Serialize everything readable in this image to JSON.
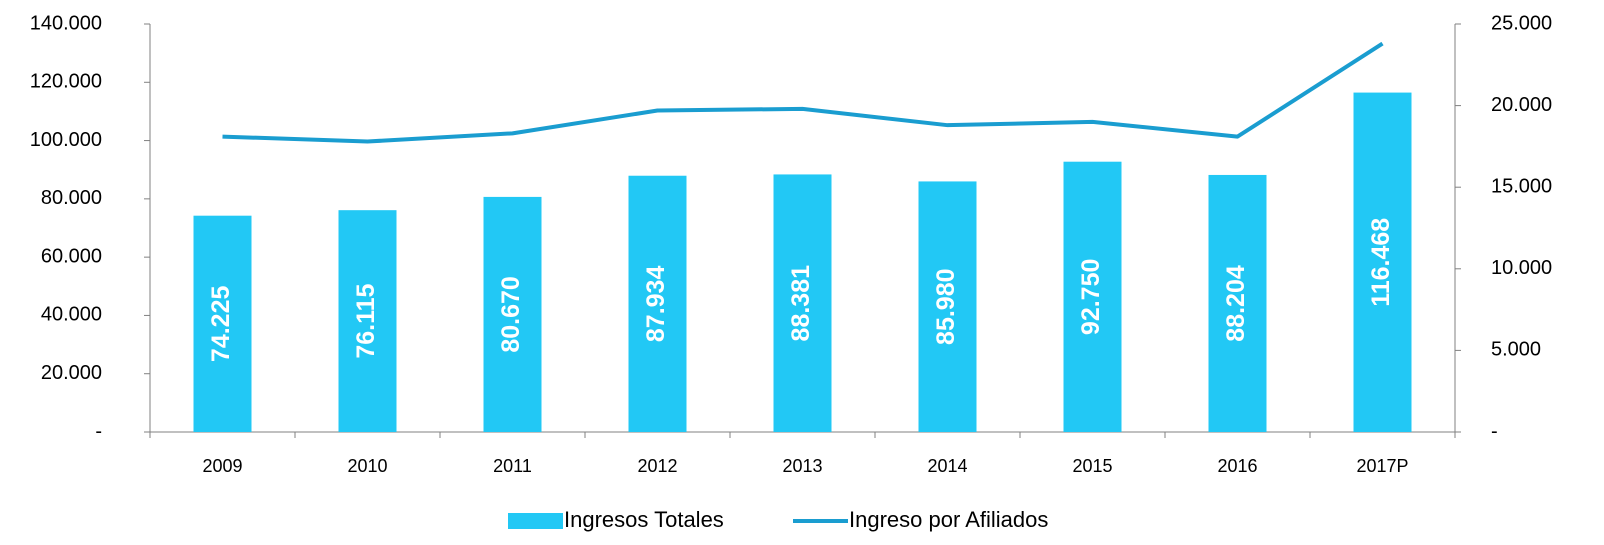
{
  "chart_data": {
    "type": "bar_line",
    "categories": [
      "2009",
      "2010",
      "2011",
      "2012",
      "2013",
      "2014",
      "2015",
      "2016",
      "2017P"
    ],
    "series": [
      {
        "name": "Ingresos Totales",
        "type": "bar",
        "color": "#22c8f5",
        "axis": "y",
        "values": [
          74225,
          76115,
          80670,
          87934,
          88381,
          85980,
          92750,
          88204,
          116468
        ],
        "value_labels": [
          "74.225",
          "76.115",
          "80.670",
          "87.934",
          "88.381",
          "85.980",
          "92.750",
          "88.204",
          "116.468"
        ]
      },
      {
        "name": "Ingreso por Afiliados",
        "type": "line",
        "color": "#1a9dd0",
        "axis": "y2",
        "values": [
          18100,
          17800,
          18300,
          19700,
          19800,
          18800,
          19000,
          18100,
          23800
        ]
      }
    ],
    "ylim": [
      0,
      140000
    ],
    "yticks": [
      {
        "value": 0,
        "label": "-"
      },
      {
        "value": 20000,
        "label": "20.000"
      },
      {
        "value": 40000,
        "label": "40.000"
      },
      {
        "value": 60000,
        "label": "60.000"
      },
      {
        "value": 80000,
        "label": "80.000"
      },
      {
        "value": 100000,
        "label": "100.000"
      },
      {
        "value": 120000,
        "label": "120.000"
      },
      {
        "value": 140000,
        "label": "140.000"
      }
    ],
    "y2lim": [
      0,
      25000
    ],
    "y2ticks": [
      {
        "value": 0,
        "label": "-"
      },
      {
        "value": 5000,
        "label": "5.000"
      },
      {
        "value": 10000,
        "label": "10.000"
      },
      {
        "value": 15000,
        "label": "15.000"
      },
      {
        "value": 20000,
        "label": "20.000"
      },
      {
        "value": 25000,
        "label": "25.000"
      }
    ],
    "legend": "bottom"
  }
}
